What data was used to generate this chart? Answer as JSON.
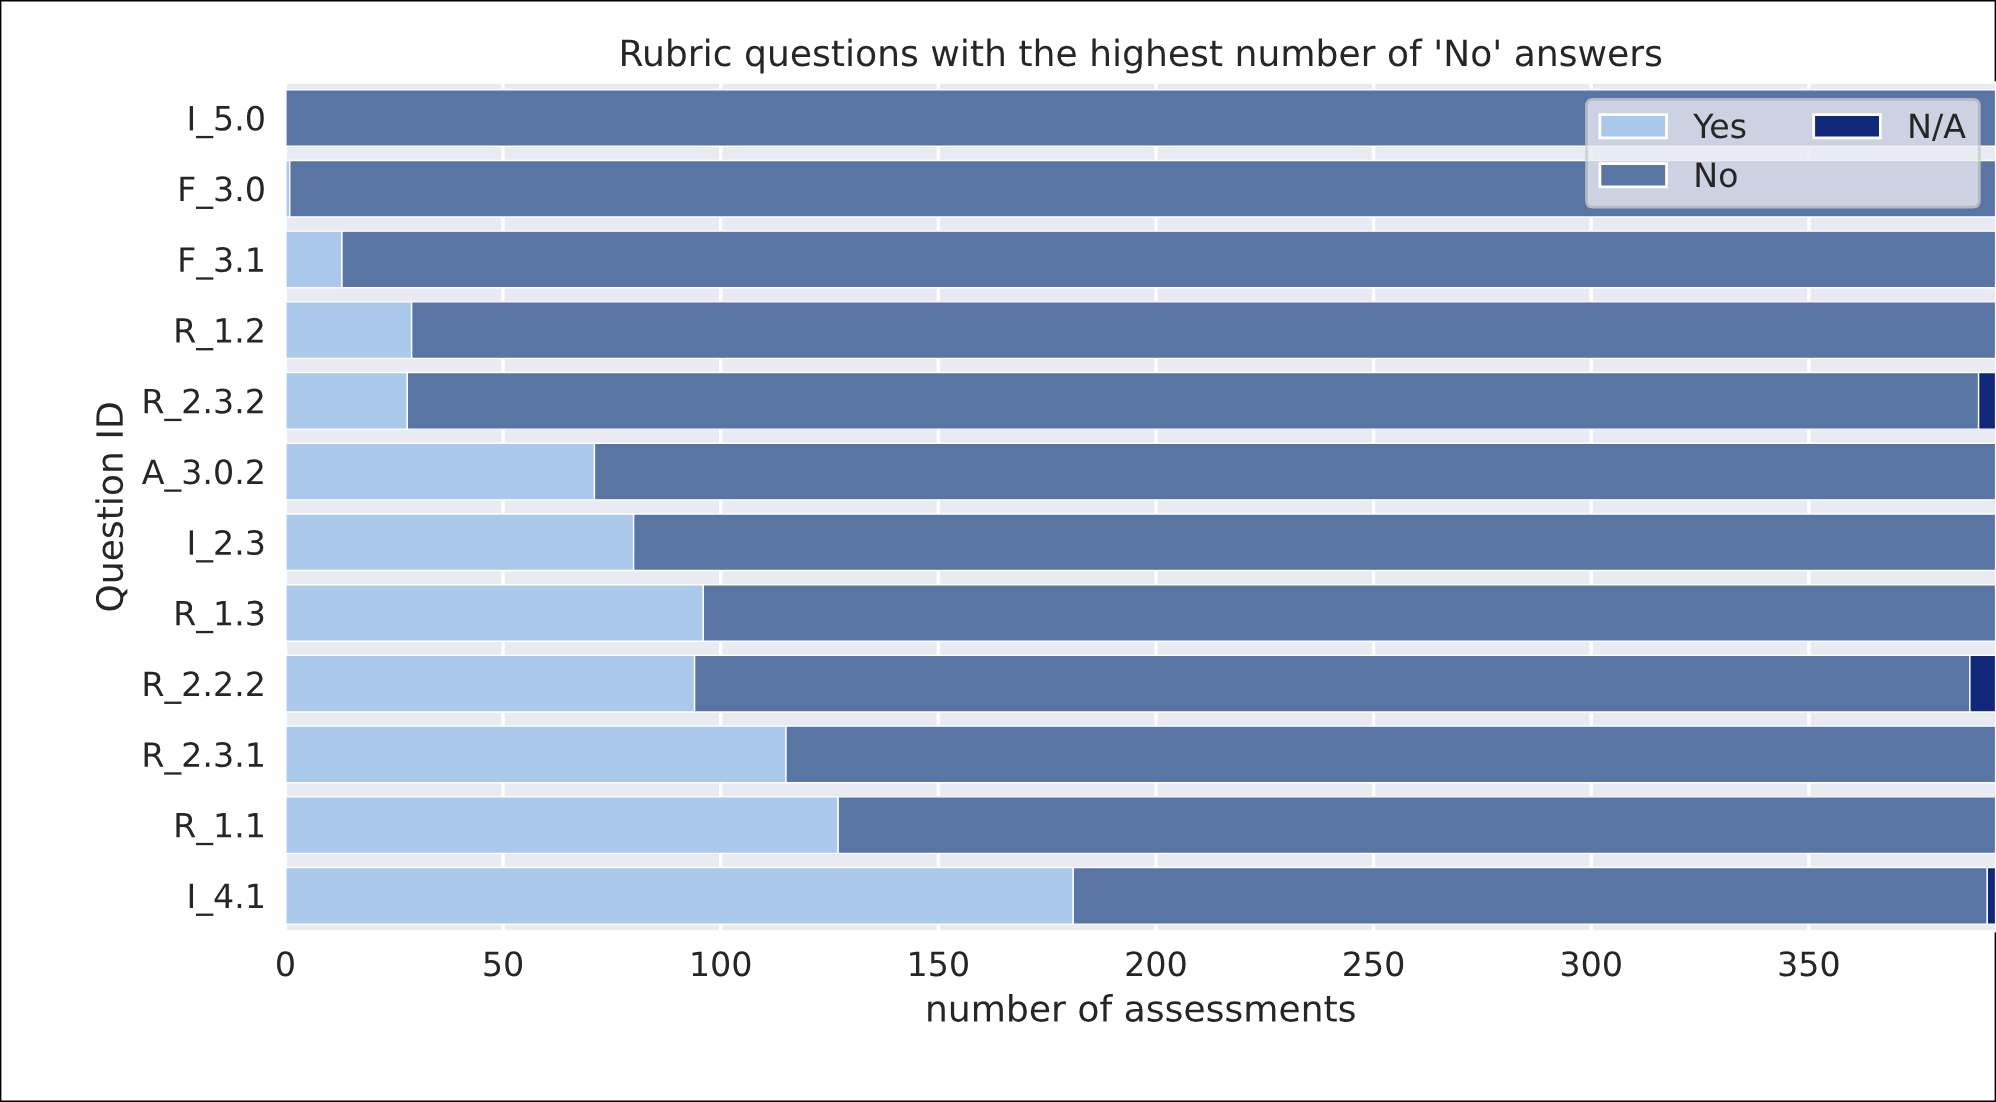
{
  "chart_data": {
    "type": "bar",
    "orientation": "horizontal",
    "stacked": true,
    "title": "Rubric questions with the highest number of 'No' answers",
    "xlabel": "number of assessments",
    "ylabel": "Question ID",
    "categories": [
      "I_5.0",
      "F_3.0",
      "F_3.1",
      "R_1.2",
      "R_2.3.2",
      "A_3.0.2",
      "I_2.3",
      "R_1.3",
      "R_2.2.2",
      "R_2.3.1",
      "R_1.1",
      "I_4.1"
    ],
    "series": [
      {
        "name": "Yes",
        "color": "#abc9ea",
        "values": [
          0,
          1,
          13,
          29,
          28,
          71,
          80,
          96,
          94,
          115,
          127,
          181
        ]
      },
      {
        "name": "No",
        "color": "#5975a4",
        "values": [
          393,
          392,
          380,
          364,
          361,
          322,
          313,
          297,
          293,
          278,
          266,
          210
        ]
      },
      {
        "name": "N/A",
        "color": "#10277a",
        "values": [
          0,
          0,
          0,
          0,
          4,
          0,
          0,
          0,
          6,
          0,
          0,
          2
        ]
      }
    ],
    "xlim": [
      0,
      393
    ],
    "xticks": [
      0,
      50,
      100,
      150,
      200,
      250,
      300,
      350
    ],
    "grid": "x",
    "legend": "top right"
  }
}
